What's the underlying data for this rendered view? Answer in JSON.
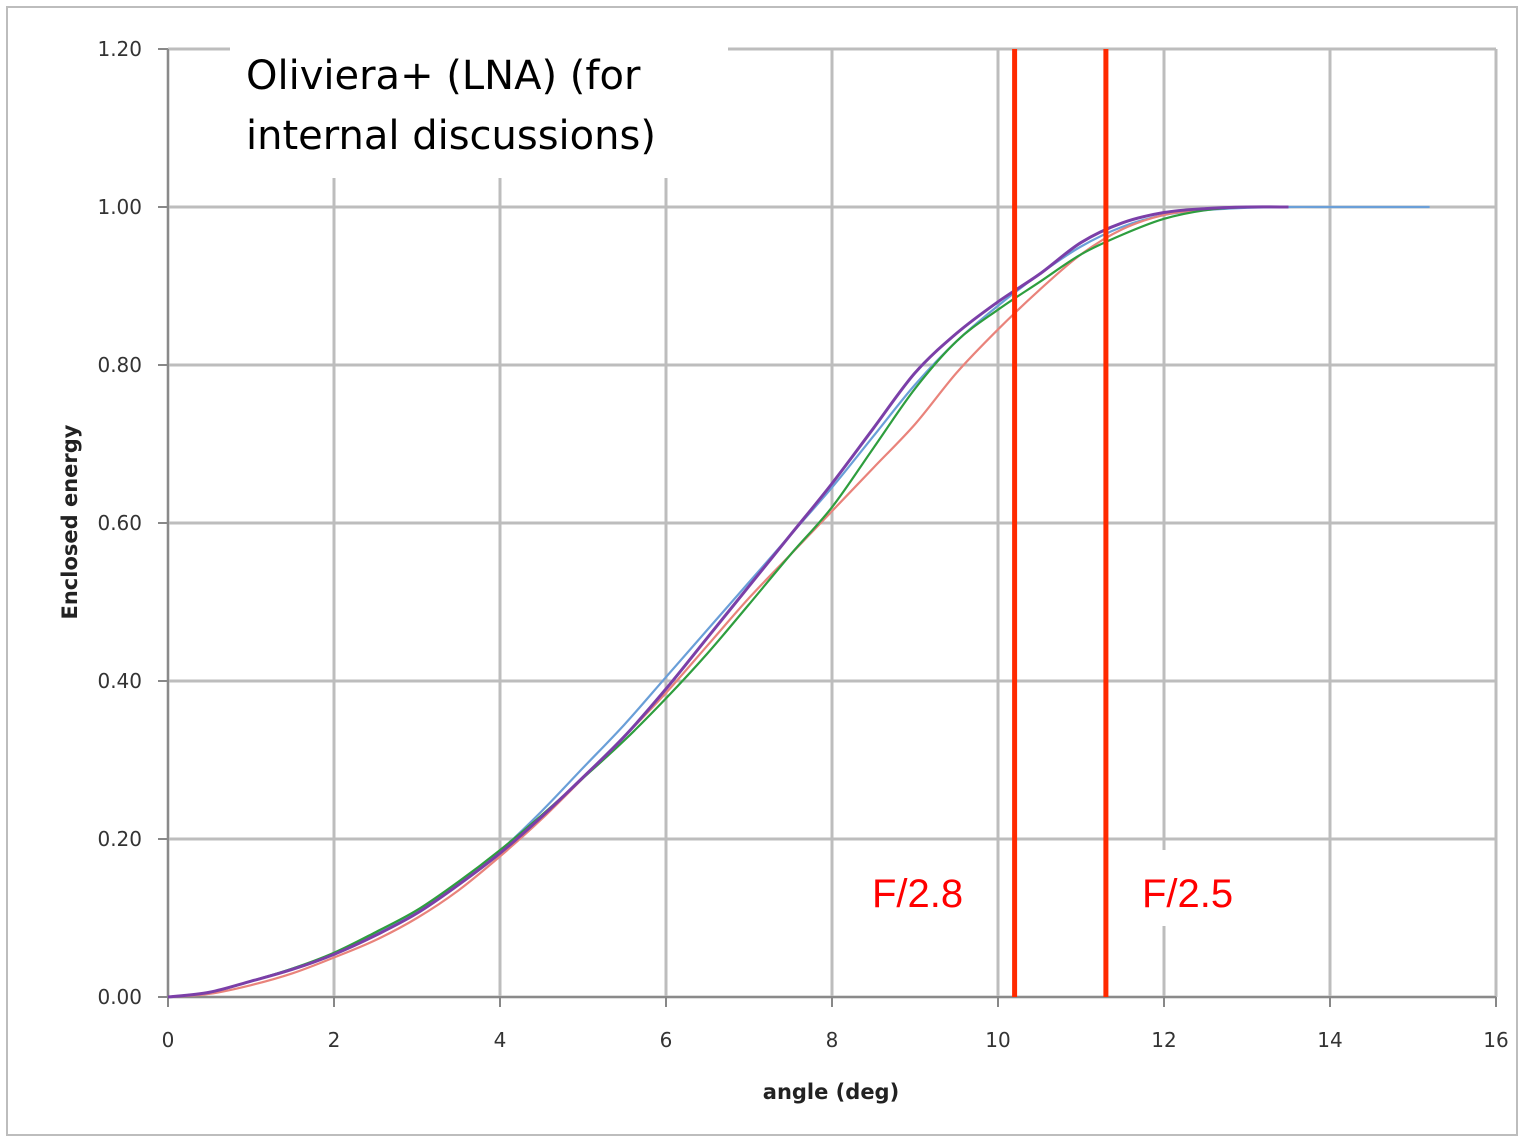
{
  "title_lines": [
    "Oliviera+ (LNA) (for",
    "internal discussions)"
  ],
  "chart_data": {
    "type": "line",
    "title": "Oliviera+ (LNA) (for internal discussions)",
    "xlabel": "angle (deg)",
    "ylabel": "Enclosed energy",
    "xlim": [
      0,
      16
    ],
    "ylim": [
      0,
      1.2
    ],
    "x_ticks": [
      "0",
      "2",
      "4",
      "6",
      "8",
      "10",
      "12",
      "14",
      "16"
    ],
    "y_ticks": [
      "0.00",
      "0.20",
      "0.40",
      "0.60",
      "0.80",
      "1.00",
      "1.20"
    ],
    "grid": true,
    "series": [
      {
        "color": "#6a9fd8",
        "x": [
          0,
          0.5,
          1,
          1.5,
          2,
          2.5,
          3,
          3.5,
          4,
          4.5,
          5,
          5.5,
          6,
          6.5,
          7,
          7.5,
          8,
          8.5,
          9,
          9.5,
          10,
          10.5,
          11,
          11.5,
          12,
          12.5,
          13,
          13.5,
          14,
          14.5,
          15,
          15.2
        ],
        "y": [
          0,
          0.006,
          0.02,
          0.036,
          0.055,
          0.08,
          0.108,
          0.145,
          0.185,
          0.235,
          0.29,
          0.345,
          0.405,
          0.465,
          0.525,
          0.585,
          0.645,
          0.71,
          0.775,
          0.83,
          0.875,
          0.915,
          0.95,
          0.975,
          0.99,
          0.996,
          0.999,
          1.0,
          1.0,
          1.0,
          1.0,
          1.0
        ]
      },
      {
        "color": "#e9837b",
        "x": [
          0,
          0.5,
          1,
          1.5,
          2,
          2.5,
          3,
          3.5,
          4,
          4.5,
          5,
          5.5,
          6,
          6.5,
          7,
          7.5,
          8,
          8.5,
          9,
          9.5,
          10,
          10.5,
          11,
          11.5,
          12,
          12.5,
          13,
          13.5
        ],
        "y": [
          0,
          0.004,
          0.015,
          0.03,
          0.05,
          0.072,
          0.1,
          0.135,
          0.178,
          0.225,
          0.277,
          0.33,
          0.385,
          0.445,
          0.505,
          0.56,
          0.615,
          0.67,
          0.725,
          0.79,
          0.845,
          0.895,
          0.94,
          0.972,
          0.99,
          0.997,
          1.0,
          1.0
        ]
      },
      {
        "color": "#2e9e3e",
        "x": [
          0,
          0.5,
          1,
          1.5,
          2,
          2.5,
          3,
          3.5,
          4,
          4.5,
          5,
          5.5,
          6,
          6.5,
          7,
          7.5,
          8,
          8.5,
          9,
          9.5,
          10,
          10.5,
          11,
          11.5,
          12,
          12.5,
          13,
          13.5
        ],
        "y": [
          0,
          0.006,
          0.02,
          0.036,
          0.056,
          0.082,
          0.11,
          0.146,
          0.186,
          0.23,
          0.277,
          0.325,
          0.378,
          0.435,
          0.497,
          0.56,
          0.62,
          0.695,
          0.77,
          0.83,
          0.87,
          0.905,
          0.94,
          0.965,
          0.985,
          0.996,
          1.0,
          1.0
        ]
      },
      {
        "color": "#7b3fa8",
        "x": [
          0,
          0.5,
          1,
          1.5,
          2,
          2.5,
          3,
          3.5,
          4,
          4.5,
          5,
          5.5,
          6,
          6.5,
          7,
          7.5,
          8,
          8.5,
          9,
          9.5,
          10,
          10.5,
          11,
          11.5,
          12,
          12.5,
          13,
          13.5
        ],
        "y": [
          0,
          0.006,
          0.02,
          0.035,
          0.054,
          0.078,
          0.106,
          0.142,
          0.182,
          0.228,
          0.278,
          0.33,
          0.39,
          0.455,
          0.52,
          0.585,
          0.65,
          0.72,
          0.79,
          0.84,
          0.88,
          0.915,
          0.955,
          0.98,
          0.993,
          0.998,
          1.0,
          1.0
        ]
      }
    ],
    "annotations": [
      {
        "label": "F/2.8",
        "x": 10.2,
        "color": "#ff2a00"
      },
      {
        "label": "F/2.5",
        "x": 11.3,
        "color": "#ff2a00"
      }
    ]
  }
}
